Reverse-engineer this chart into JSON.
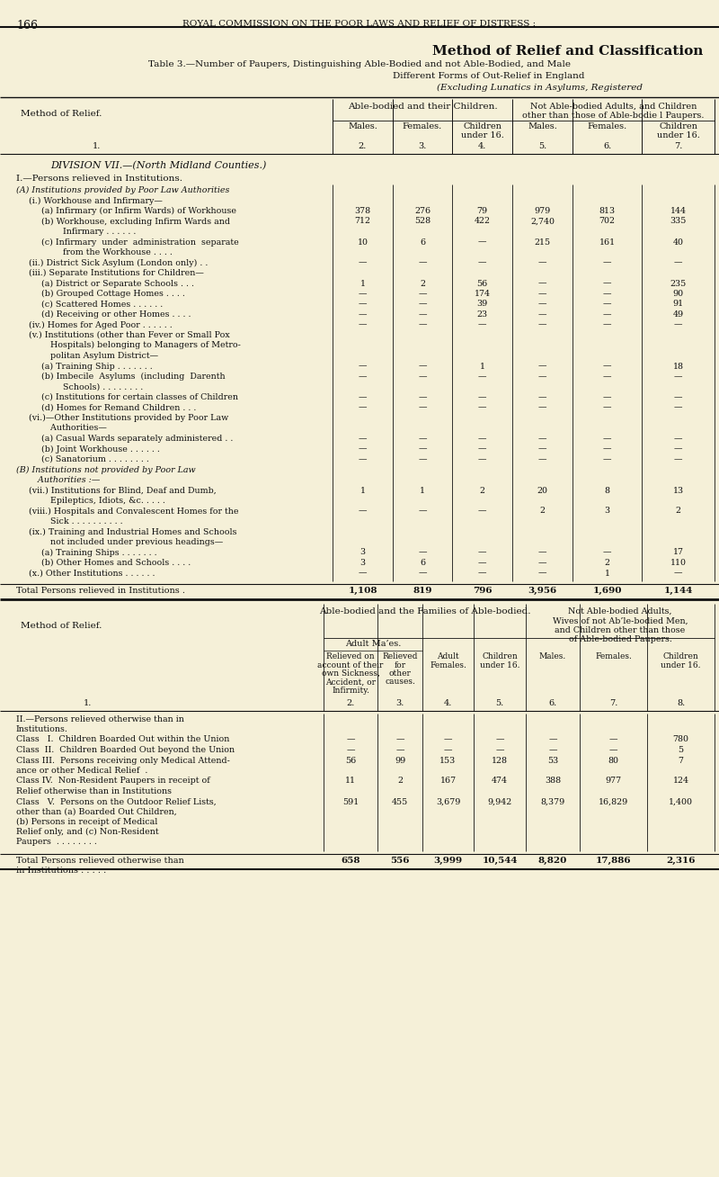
{
  "bg_color": "#f5f0d8",
  "page_number": "166",
  "header_text": "ROYAL COMMISSION ON THE POOR LAWS AND RELIEF OF DISTRESS :",
  "title1": "Method of Relief and Classification",
  "title2": "Table 3.—Number of Paupers, Distinguishing Able-Bodied and not Able-Bodied, and Male",
  "title3": "Different Forms of Out-Relief in England",
  "title4": "(Excluding Lunatics in Asylums, Registered",
  "section_header": "DIVISION VII.—(North Midland Counties.)",
  "part1_header": "I.—Persons relieved in Institutions.",
  "col_headers_top1": "Able-bodied and their Children.",
  "col_headers_top2": "Not Able-bodied Adults, and Children\nother than those of Able-bodie l Paupers.",
  "col_sub1": "Males.",
  "col_sub2": "Females.",
  "col_sub3": "Children\nunder 16.",
  "col_sub4": "Males.",
  "col_sub5": "Females.",
  "col_sub6": "Children\nunder 16.",
  "col_nums_1": [
    "1.",
    "2.",
    "3.",
    "4.",
    "5.",
    "6.",
    "7."
  ],
  "rows_part1": [
    {
      "label": "(A) Institutions provided by Poor Law Authorities",
      "indent": 0,
      "italic": true,
      "vals": [
        "",
        "",
        "",
        "",
        "",
        ""
      ],
      "extra_lines": 0
    },
    {
      "label": "(i.) Workhouse and Infirmary—",
      "indent": 1,
      "italic": false,
      "vals": [
        "",
        "",
        "",
        "",
        "",
        ""
      ],
      "extra_lines": 0
    },
    {
      "label": "(a) Infirmary (or Infirm Wards) of Workhouse",
      "indent": 2,
      "italic": false,
      "vals": [
        "378",
        "276",
        "79",
        "979",
        "813",
        "144"
      ],
      "extra_lines": 0
    },
    {
      "label": "(b) Workhouse, excluding Infirm Wards and\n        Infirmary . . . . . .",
      "indent": 2,
      "italic": false,
      "vals": [
        "712",
        "528",
        "422",
        "2,740",
        "702",
        "335"
      ],
      "extra_lines": 1
    },
    {
      "label": "(c) Infirmary  under  administration  separate\n        from the Workhouse . . . .",
      "indent": 2,
      "italic": false,
      "vals": [
        "10",
        "6",
        "—",
        "215",
        "161",
        "40"
      ],
      "extra_lines": 1
    },
    {
      "label": "(ii.) District Sick Asylum (London only) . .",
      "indent": 1,
      "italic": false,
      "vals": [
        "—",
        "—",
        "—",
        "—",
        "—",
        "—"
      ],
      "extra_lines": 0
    },
    {
      "label": "(iii.) Separate Institutions for Children—",
      "indent": 1,
      "italic": false,
      "vals": [
        "",
        "",
        "",
        "",
        "",
        ""
      ],
      "extra_lines": 0
    },
    {
      "label": "(a) District or Separate Schools . . .",
      "indent": 2,
      "italic": false,
      "vals": [
        "1",
        "2",
        "56",
        "—",
        "—",
        "235"
      ],
      "extra_lines": 0
    },
    {
      "label": "(b) Grouped Cottage Homes . . . .",
      "indent": 2,
      "italic": false,
      "vals": [
        "—",
        "—",
        "174",
        "—",
        "—",
        "90"
      ],
      "extra_lines": 0
    },
    {
      "label": "(c) Scattered Homes . . . . . .",
      "indent": 2,
      "italic": false,
      "vals": [
        "—",
        "—",
        "39",
        "—",
        "—",
        "91"
      ],
      "extra_lines": 0
    },
    {
      "label": "(d) Receiving or other Homes . . . .",
      "indent": 2,
      "italic": false,
      "vals": [
        "—",
        "—",
        "23",
        "—",
        "—",
        "49"
      ],
      "extra_lines": 0
    },
    {
      "label": "(iv.) Homes for Aged Poor . . . . . .",
      "indent": 1,
      "italic": false,
      "vals": [
        "—",
        "—",
        "—",
        "—",
        "—",
        "—"
      ],
      "extra_lines": 0
    },
    {
      "label": "(v.) Institutions (other than Fever or Small Pox\n        Hospitals) belonging to Managers of Metro-\n        politan Asylum District—",
      "indent": 1,
      "italic": false,
      "vals": [
        "",
        "",
        "",
        "",
        "",
        ""
      ],
      "extra_lines": 2
    },
    {
      "label": "(a) Training Ship . . . . . . .",
      "indent": 2,
      "italic": false,
      "vals": [
        "—",
        "—",
        "1",
        "—",
        "—",
        "18"
      ],
      "extra_lines": 0
    },
    {
      "label": "(b) Imbecile  Asylums  (including  Darenth\n        Schools) . . . . . . . .",
      "indent": 2,
      "italic": false,
      "vals": [
        "—",
        "—",
        "—",
        "—",
        "—",
        "—"
      ],
      "extra_lines": 1
    },
    {
      "label": "(c) Institutions for certain classes of Children",
      "indent": 2,
      "italic": false,
      "vals": [
        "—",
        "—",
        "—",
        "—",
        "—",
        "—"
      ],
      "extra_lines": 0
    },
    {
      "label": "(d) Homes for Remand Children . . .",
      "indent": 2,
      "italic": false,
      "vals": [
        "—",
        "—",
        "—",
        "—",
        "—",
        "—"
      ],
      "extra_lines": 0
    },
    {
      "label": "(vi.)—Other Institutions provided by Poor Law\n        Authorities—",
      "indent": 1,
      "italic": false,
      "vals": [
        "",
        "",
        "",
        "",
        "",
        ""
      ],
      "extra_lines": 1
    },
    {
      "label": "(a) Casual Wards separately administered . .",
      "indent": 2,
      "italic": false,
      "vals": [
        "—",
        "—",
        "—",
        "—",
        "—",
        "—"
      ],
      "extra_lines": 0
    },
    {
      "label": "(b) Joint Workhouse . . . . . .",
      "indent": 2,
      "italic": false,
      "vals": [
        "—",
        "—",
        "—",
        "—",
        "—",
        "—"
      ],
      "extra_lines": 0
    },
    {
      "label": "(c) Sanatorium . . . . . . . .",
      "indent": 2,
      "italic": false,
      "vals": [
        "—",
        "—",
        "—",
        "—",
        "—",
        "—"
      ],
      "extra_lines": 0
    },
    {
      "label": "(B) Institutions not provided by Poor Law\n        Authorities :—",
      "indent": 0,
      "italic": true,
      "vals": [
        "",
        "",
        "",
        "",
        "",
        ""
      ],
      "extra_lines": 1
    },
    {
      "label": "(vii.) Institutions for Blind, Deaf and Dumb,\n        Epileptics, Idiots, &c. . . . .",
      "indent": 1,
      "italic": false,
      "vals": [
        "1",
        "1",
        "2",
        "20",
        "8",
        "13"
      ],
      "extra_lines": 1
    },
    {
      "label": "(viii.) Hospitals and Convalescent Homes for the\n        Sick . . . . . . . . . .",
      "indent": 1,
      "italic": false,
      "vals": [
        "—",
        "—",
        "—",
        "2",
        "3",
        "2"
      ],
      "extra_lines": 1
    },
    {
      "label": "(ix.) Training and Industrial Homes and Schools\n        not included under previous headings—",
      "indent": 1,
      "italic": false,
      "vals": [
        "",
        "",
        "",
        "",
        "",
        ""
      ],
      "extra_lines": 1
    },
    {
      "label": "(a) Training Ships . . . . . . .",
      "indent": 2,
      "italic": false,
      "vals": [
        "3",
        "—",
        "—",
        "—",
        "—",
        "17"
      ],
      "extra_lines": 0
    },
    {
      "label": "(b) Other Homes and Schools . . . .",
      "indent": 2,
      "italic": false,
      "vals": [
        "3",
        "6",
        "—",
        "—",
        "2",
        "110"
      ],
      "extra_lines": 0
    },
    {
      "label": "(x.) Other Institutions . . . . . .",
      "indent": 1,
      "italic": false,
      "vals": [
        "—",
        "—",
        "—",
        "—",
        "1",
        "—"
      ],
      "extra_lines": 0
    }
  ],
  "total_row1_label": "Total Persons relieved in Institutions .",
  "total_row1_vals": [
    "1,108",
    "819",
    "796",
    "3,956",
    "1,690",
    "1,144"
  ],
  "part2_col_top1": "Able-bodied and the Families of Able-bodied.",
  "part2_col_top2": "Not Able-bodied Adults,\nWives of not Ab’le-bodied Men,\nand Children other than those\nof Able-bodied Paupers.",
  "part2_adult_males": "Adult Ma’es.",
  "part2_col_sub1": "Relieved on\naccount of their\nown Sickness,\nAccident, or\nInfirmity.",
  "part2_col_sub2": "Relieved\nfor\nother\ncauses.",
  "part2_col_sub3": "Adult\nFemales.",
  "part2_col_sub4": "Children\nunder 16.",
  "part2_col_sub5": "Males.",
  "part2_col_sub6": "Females.",
  "part2_col_sub7": "Children\nunder 16.",
  "part2_col_nums": [
    "1.",
    "2.",
    "3.",
    "4.",
    "5.",
    "6.",
    "7.",
    "8."
  ],
  "rows_part2": [
    {
      "label": "II.—Persons relieved otherwise than in\nInstitutions.",
      "smallcaps": true,
      "vals": [
        "",
        "",
        "",
        "",
        "",
        "",
        ""
      ],
      "extra_lines": 1
    },
    {
      "label": "Class   I.  Children Boarded Out within the Union",
      "vals": [
        "—",
        "—",
        "—",
        "—",
        "—",
        "—",
        "780"
      ],
      "extra_lines": 0
    },
    {
      "label": "Class  II.  Children Boarded Out beyond the Union",
      "vals": [
        "—",
        "—",
        "—",
        "—",
        "—",
        "—",
        "5"
      ],
      "extra_lines": 0
    },
    {
      "label": "Class III.  Persons receiving only Medical Attend-\nance or other Medical Relief  .",
      "vals": [
        "56",
        "99",
        "153",
        "128",
        "53",
        "80",
        "7"
      ],
      "extra_lines": 1
    },
    {
      "label": "Class IV.  Non-Resident Paupers in receipt of\nRelief otherwise than in Institutions",
      "vals": [
        "11",
        "2",
        "167",
        "474",
        "388",
        "977",
        "124"
      ],
      "extra_lines": 1
    },
    {
      "label": "Class   V.  Persons on the Outdoor Relief Lists,\nother than (a) Boarded Out Children,\n(b) Persons in receipt of Medical\nRelief only, and (c) Non-Resident\nPaupers  . . . . . . . .",
      "vals": [
        "591",
        "455",
        "3,679",
        "9,942",
        "8,379",
        "16,829",
        "1,400"
      ],
      "extra_lines": 4
    }
  ],
  "total_row2_label": "Total Persons relieved otherwise than\nin Institutions . . . . .",
  "total_row2_vals": [
    "658",
    "556",
    "3,999",
    "10,544",
    "8,820",
    "17,886",
    "2,316"
  ]
}
